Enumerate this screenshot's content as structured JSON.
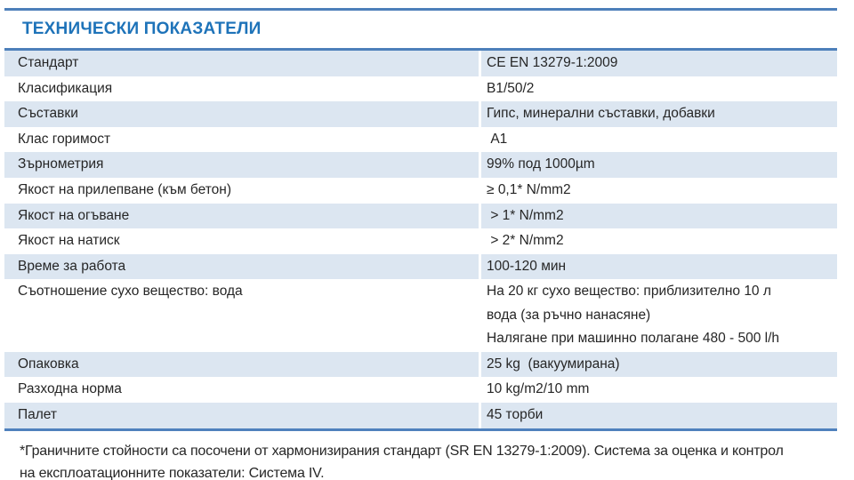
{
  "header": {
    "title": "ТЕХНИЧЕСКИ ПОКАЗАТЕЛИ"
  },
  "table": {
    "rows": [
      {
        "label": "Стандарт",
        "value": "CE EN 13279-1:2009"
      },
      {
        "label": "Класификация",
        "value": "B1/50/2"
      },
      {
        "label": "Съставки",
        "value": "Гипс, минерални съставки, добавки"
      },
      {
        "label": "Клас горимост",
        "value": " A1"
      },
      {
        "label": "Зърнометрия",
        "value": "99% под 1000µm"
      },
      {
        "label": "Якост на прилепване (към бетон)",
        "value": "≥ 0,1* N/mm2"
      },
      {
        "label": "Якост на огъване",
        "value": " > 1* N/mm2"
      },
      {
        "label": "Якост на натиск",
        "value": " > 2* N/mm2"
      },
      {
        "label": "Време за работа",
        "value": "100-120 мин"
      },
      {
        "label": "Съотношение сухо вещество: вода",
        "value": "На 20 кг сухо вещество: приблизително 10 л\nвода (за ръчно нанасяне)\nНалягане при машинно полагане 480 - 500 l/h"
      },
      {
        "label": "Опаковка",
        "value": "25 kg  (вакуумирана)"
      },
      {
        "label": "Разходна норма",
        "value": "10 kg/m2/10 mm"
      },
      {
        "label": "Палет",
        "value": "45 торби"
      }
    ]
  },
  "footnote": {
    "lines": [
      "*Граничните стойности са посочени от хармонизирания стандарт (SR EN 13279-1:2009). Система за оценка и контрол",
      "на експлоатационните показатели: Система IV."
    ]
  },
  "colors": {
    "accent_blue": "#1e73b9",
    "rule_blue": "#4d7fba",
    "bottom_rule_blue": "#4f81bd",
    "row_shade": "#dce6f1",
    "text": "#262626"
  }
}
